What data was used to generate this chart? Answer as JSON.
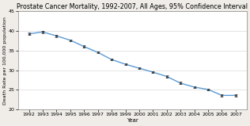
{
  "title": "Prostate Cancer Mortality, 1992-2007, All Ages, 95% Confidence Interval",
  "xlabel": "Year",
  "ylabel": "Death Rate per 100,000 population",
  "years": [
    1992,
    1993,
    1994,
    1995,
    1996,
    1997,
    1998,
    1999,
    2000,
    2001,
    2002,
    2003,
    2004,
    2005,
    2006,
    2007
  ],
  "values": [
    39.2,
    39.7,
    38.7,
    37.6,
    36.0,
    34.5,
    32.7,
    31.5,
    30.5,
    29.5,
    28.4,
    26.7,
    25.7,
    25.1,
    23.6,
    23.6
  ],
  "ci_half": [
    0.3,
    0.3,
    0.25,
    0.25,
    0.25,
    0.25,
    0.25,
    0.25,
    0.25,
    0.25,
    0.25,
    0.3,
    0.25,
    0.25,
    0.25,
    0.25
  ],
  "ylim": [
    20,
    45
  ],
  "yticks": [
    20,
    25,
    30,
    35,
    40,
    45
  ],
  "line_color": "#5b9bd5",
  "marker_color": "#404040",
  "bg_color": "#f0ede8",
  "plot_bg_color": "#ffffff",
  "grid_color": "#d0d0d0",
  "title_fontsize": 5.8,
  "label_fontsize": 5.0,
  "tick_fontsize": 4.5,
  "ylabel_fontsize": 4.5
}
